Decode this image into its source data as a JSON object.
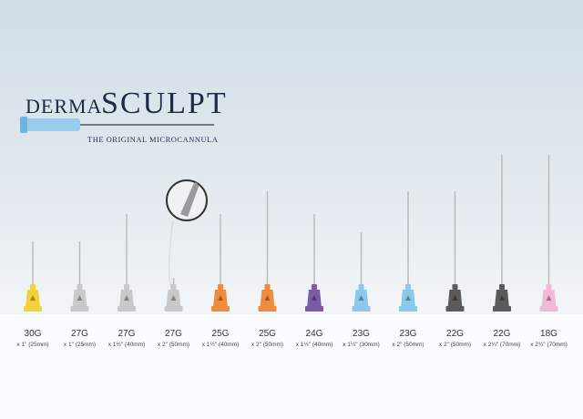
{
  "brand": {
    "prefix": "DERMA",
    "name": "SCULPT",
    "tagline": "THE ORIGINAL MICROCANNULA"
  },
  "cannulas": [
    {
      "gauge": "30G",
      "size": "x 1\" (25mm)",
      "color": "#f2d23c"
    },
    {
      "gauge": "27G",
      "size": "x 1\" (25mm)",
      "color": "#c9c9c9"
    },
    {
      "gauge": "27G",
      "size": "x 1½\" (40mm)",
      "color": "#c9c9c9"
    },
    {
      "gauge": "27G",
      "size": "x 2\" (50mm)",
      "color": "#c9c9c9"
    },
    {
      "gauge": "25G",
      "size": "x 1½\" (40mm)",
      "color": "#f08a3c"
    },
    {
      "gauge": "25G",
      "size": "x 2\" (50mm)",
      "color": "#f08a3c"
    },
    {
      "gauge": "24G",
      "size": "x 1½\" (40mm)",
      "color": "#7b5aa6"
    },
    {
      "gauge": "23G",
      "size": "x 1¼\" (30mm)",
      "color": "#8cc8ec"
    },
    {
      "gauge": "23G",
      "size": "x 2\" (50mm)",
      "color": "#8cc8ec"
    },
    {
      "gauge": "22G",
      "size": "x 2\" (50mm)",
      "color": "#5a5a5a"
    },
    {
      "gauge": "22G",
      "size": "x 2¾\" (70mm)",
      "color": "#5a5a5a"
    },
    {
      "gauge": "18G",
      "size": "x 2¾\" (70mm)",
      "color": "#f2b8d8"
    }
  ]
}
